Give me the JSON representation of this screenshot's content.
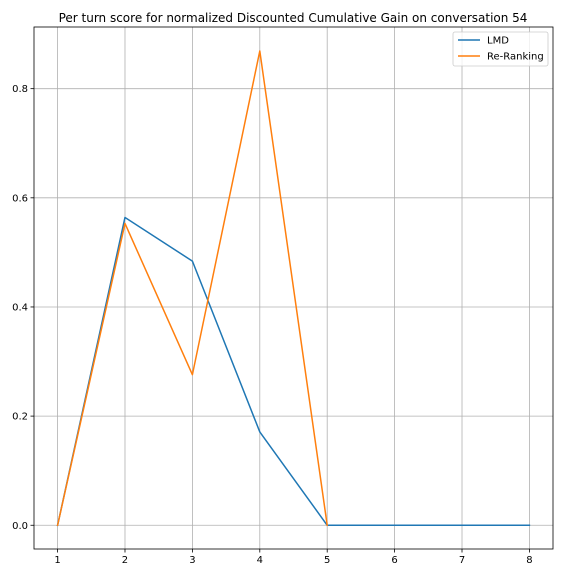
{
  "chart_data": {
    "type": "line",
    "title": "Per turn score for normalized Discounted Cumulative Gain on conversation 54",
    "xlabel": "",
    "ylabel": "",
    "x": [
      1,
      2,
      3,
      4,
      5,
      6,
      7,
      8
    ],
    "xticks": [
      "1",
      "2",
      "3",
      "4",
      "5",
      "6",
      "7",
      "8"
    ],
    "yticks": [
      "0.0",
      "0.2",
      "0.4",
      "0.6",
      "0.8"
    ],
    "xlim": [
      0.65,
      8.35
    ],
    "ylim": [
      -0.0435,
      0.913
    ],
    "grid": true,
    "legend_position": "top-right",
    "series": [
      {
        "name": "LMD",
        "color": "#1f77b4",
        "values": [
          0.0,
          0.564,
          0.484,
          0.171,
          0.0,
          0.0,
          0.0,
          0.0
        ]
      },
      {
        "name": "Re-Ranking",
        "color": "#ff7f0e",
        "values": [
          0.0,
          0.553,
          0.276,
          0.869,
          0.0,
          null,
          null,
          null
        ]
      }
    ]
  }
}
